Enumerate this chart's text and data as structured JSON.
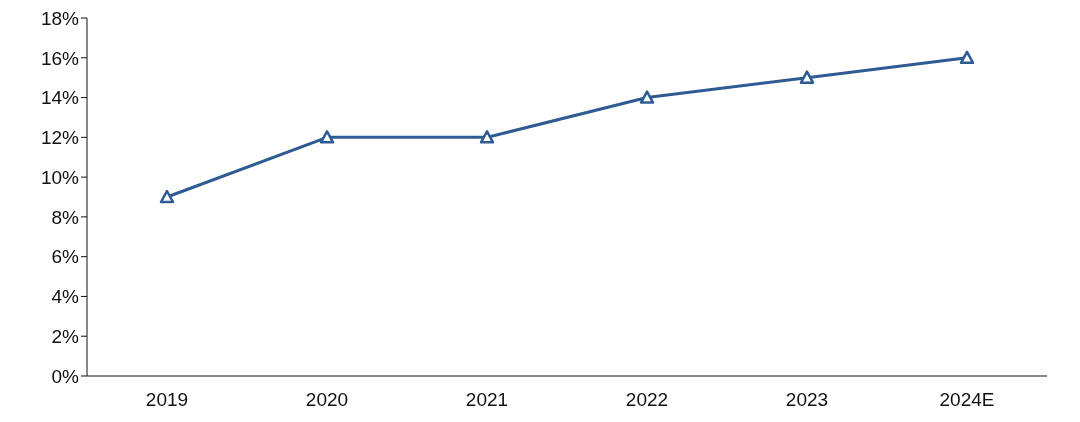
{
  "chart_data": {
    "type": "line",
    "categories": [
      "2019",
      "2020",
      "2021",
      "2022",
      "2023",
      "2024E"
    ],
    "series": [
      {
        "color": "#2e5b92",
        "values": [
          9,
          12,
          12,
          14,
          15,
          16
        ]
      }
    ],
    "ylim": [
      0,
      18
    ],
    "yticks": [
      {
        "value": 0,
        "label": "0%"
      },
      {
        "value": 2,
        "label": "2%"
      },
      {
        "value": 4,
        "label": "4%"
      },
      {
        "value": 6,
        "label": "6%"
      },
      {
        "value": 8,
        "label": "8%"
      },
      {
        "value": 10,
        "label": "10%"
      },
      {
        "value": 12,
        "label": "12%"
      },
      {
        "value": 14,
        "label": "14%"
      },
      {
        "value": 16,
        "label": "16%"
      },
      {
        "value": 18,
        "label": "18%"
      }
    ],
    "marker": "triangle",
    "grid": false,
    "legend": false
  }
}
